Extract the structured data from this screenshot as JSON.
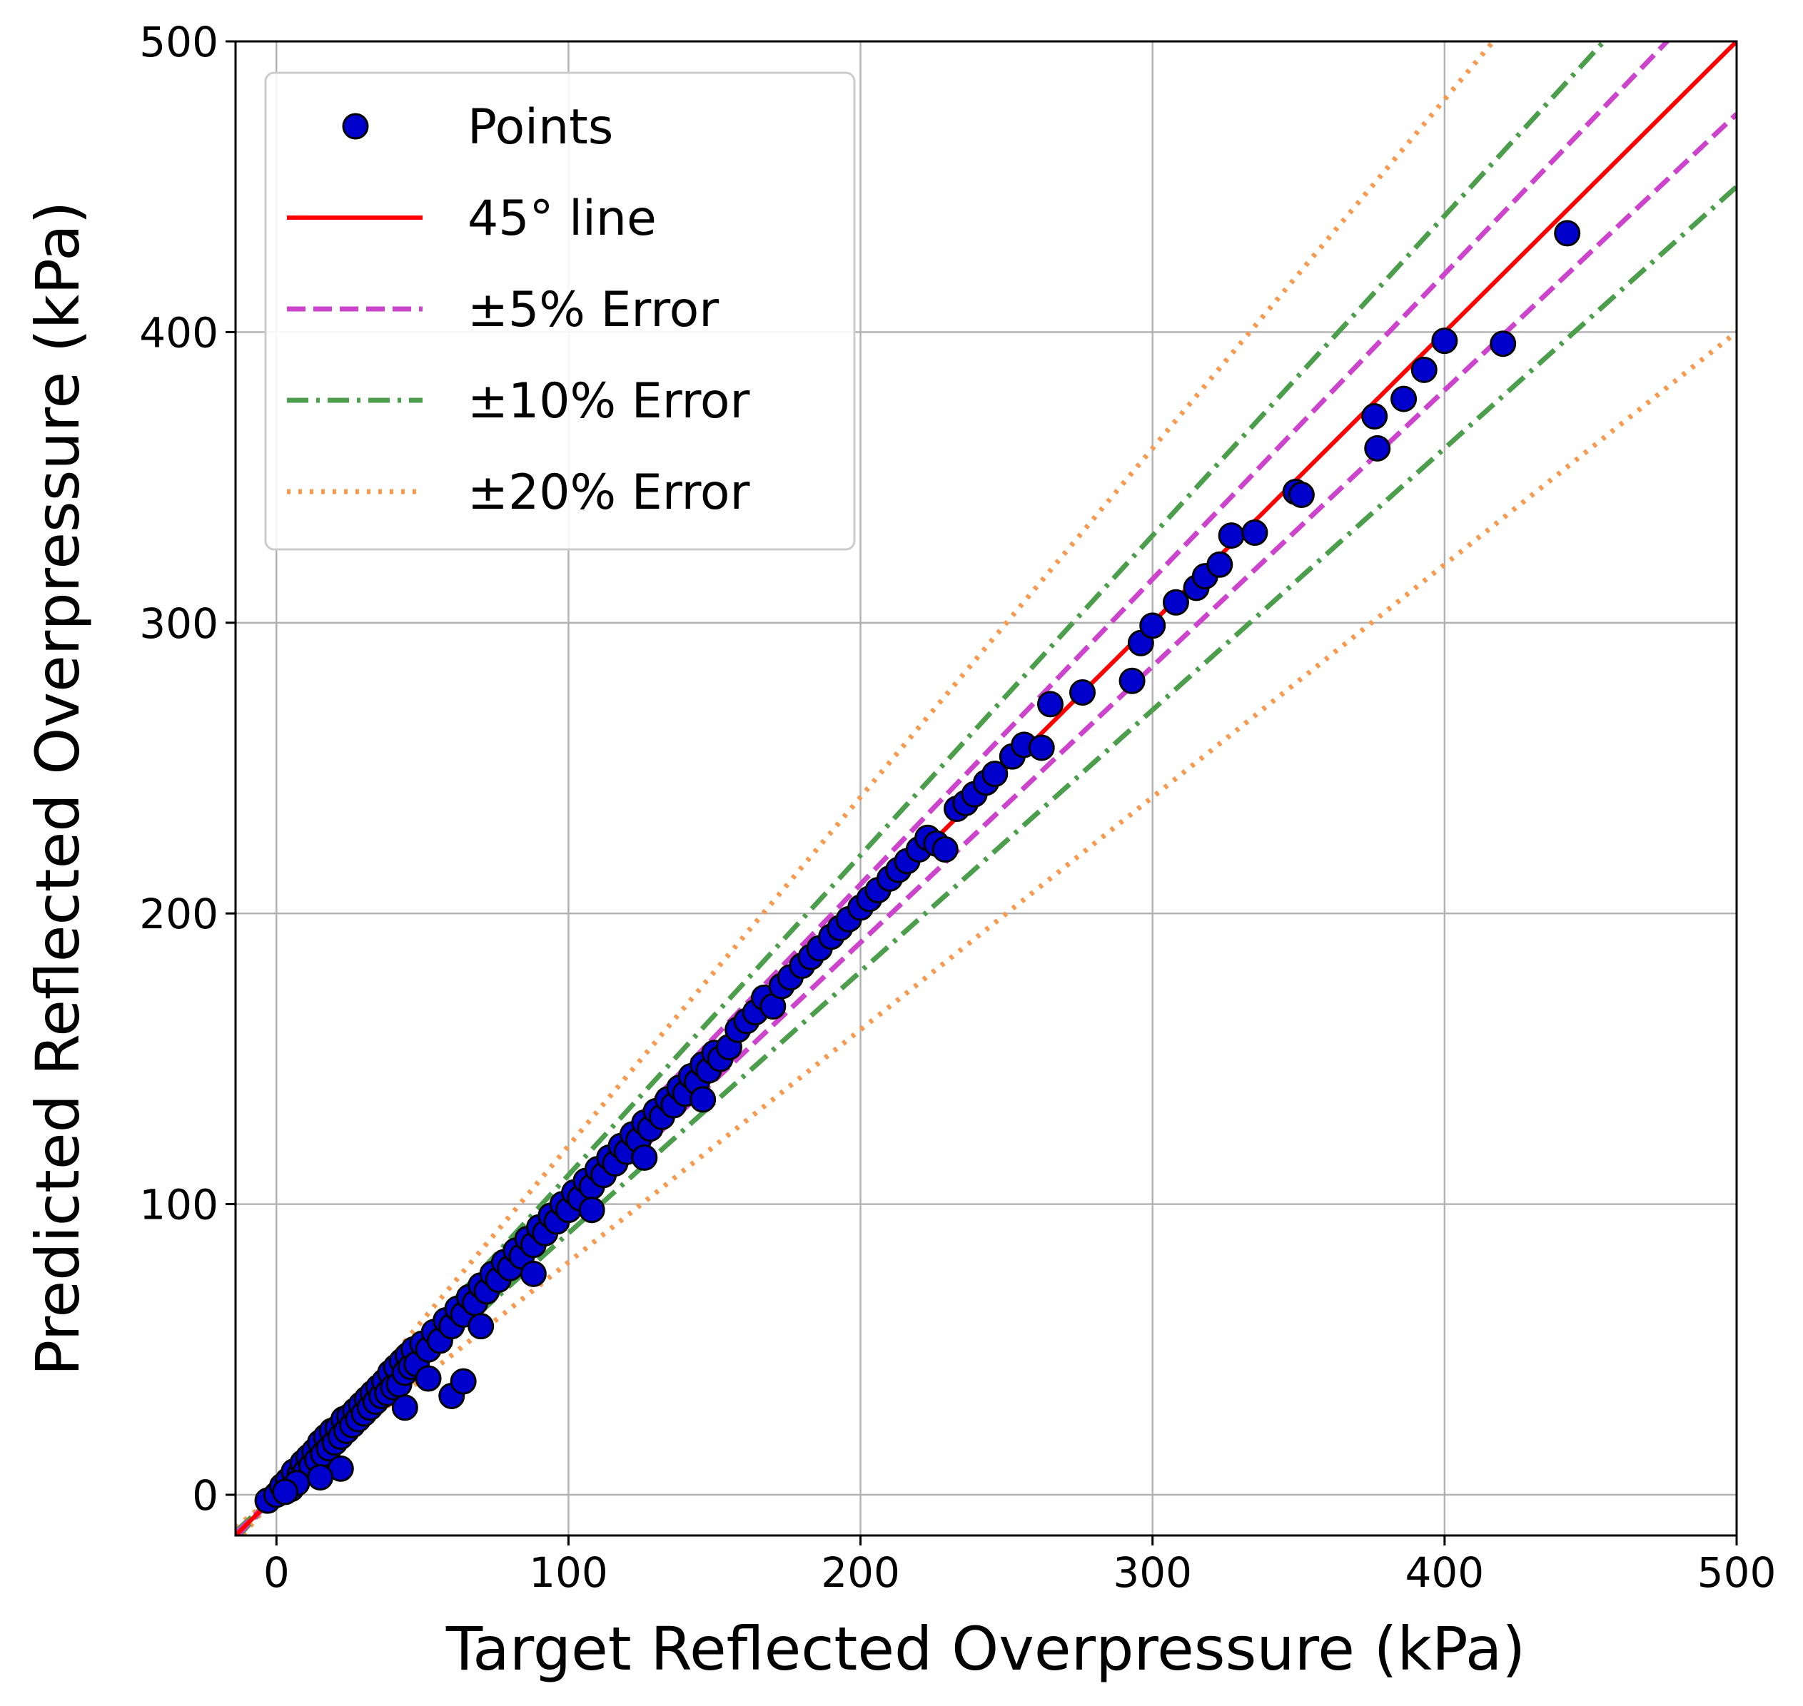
{
  "chart_data": {
    "type": "scatter",
    "xlabel": "Target Reflected Overpressure (kPa)",
    "ylabel": "Predicted Reflected Overpressure (kPa)",
    "xlim": [
      -14,
      500
    ],
    "ylim": [
      -14,
      500
    ],
    "xticks": [
      "0",
      "100",
      "200",
      "300",
      "400",
      "500"
    ],
    "yticks": [
      "0",
      "100",
      "200",
      "300",
      "400",
      "500"
    ],
    "grid": true,
    "legend_position": "top-left",
    "series": [
      {
        "name": "Points",
        "kind": "scatter",
        "color": "#0000cc",
        "edge_color": "#000000",
        "points": [
          [
            -3,
            -2
          ],
          [
            0,
            0
          ],
          [
            2,
            3
          ],
          [
            4,
            5
          ],
          [
            5,
            2
          ],
          [
            6,
            8
          ],
          [
            8,
            7
          ],
          [
            9,
            11
          ],
          [
            10,
            8
          ],
          [
            11,
            13
          ],
          [
            12,
            10
          ],
          [
            13,
            15
          ],
          [
            14,
            12
          ],
          [
            15,
            18
          ],
          [
            16,
            14
          ],
          [
            17,
            20
          ],
          [
            18,
            16
          ],
          [
            19,
            22
          ],
          [
            20,
            18
          ],
          [
            21,
            23
          ],
          [
            22,
            20
          ],
          [
            23,
            26
          ],
          [
            24,
            22
          ],
          [
            25,
            27
          ],
          [
            26,
            24
          ],
          [
            27,
            29
          ],
          [
            28,
            26
          ],
          [
            29,
            31
          ],
          [
            30,
            28
          ],
          [
            31,
            33
          ],
          [
            32,
            30
          ],
          [
            33,
            35
          ],
          [
            34,
            32
          ],
          [
            35,
            37
          ],
          [
            36,
            34
          ],
          [
            37,
            39
          ],
          [
            38,
            35
          ],
          [
            39,
            42
          ],
          [
            40,
            37
          ],
          [
            41,
            44
          ],
          [
            42,
            38
          ],
          [
            43,
            46
          ],
          [
            44,
            42
          ],
          [
            45,
            48
          ],
          [
            46,
            44
          ],
          [
            47,
            50
          ],
          [
            48,
            45
          ],
          [
            50,
            52
          ],
          [
            52,
            50
          ],
          [
            54,
            56
          ],
          [
            56,
            53
          ],
          [
            58,
            60
          ],
          [
            60,
            58
          ],
          [
            62,
            64
          ],
          [
            64,
            62
          ],
          [
            66,
            68
          ],
          [
            68,
            66
          ],
          [
            70,
            72
          ],
          [
            72,
            70
          ],
          [
            74,
            76
          ],
          [
            76,
            74
          ],
          [
            78,
            80
          ],
          [
            80,
            78
          ],
          [
            82,
            84
          ],
          [
            84,
            82
          ],
          [
            86,
            88
          ],
          [
            88,
            86
          ],
          [
            90,
            92
          ],
          [
            92,
            90
          ],
          [
            94,
            96
          ],
          [
            96,
            94
          ],
          [
            98,
            100
          ],
          [
            100,
            98
          ],
          [
            102,
            104
          ],
          [
            104,
            102
          ],
          [
            106,
            108
          ],
          [
            108,
            106
          ],
          [
            110,
            112
          ],
          [
            112,
            110
          ],
          [
            114,
            116
          ],
          [
            116,
            114
          ],
          [
            118,
            120
          ],
          [
            120,
            118
          ],
          [
            122,
            124
          ],
          [
            124,
            122
          ],
          [
            126,
            128
          ],
          [
            128,
            126
          ],
          [
            130,
            132
          ],
          [
            132,
            130
          ],
          [
            134,
            136
          ],
          [
            136,
            134
          ],
          [
            138,
            140
          ],
          [
            140,
            138
          ],
          [
            142,
            144
          ],
          [
            144,
            142
          ],
          [
            146,
            148
          ],
          [
            148,
            146
          ],
          [
            150,
            152
          ],
          [
            152,
            150
          ],
          [
            155,
            154
          ],
          [
            158,
            160
          ],
          [
            161,
            163
          ],
          [
            164,
            166
          ],
          [
            167,
            171
          ],
          [
            170,
            168
          ],
          [
            173,
            175
          ],
          [
            176,
            178
          ],
          [
            180,
            182
          ],
          [
            183,
            185
          ],
          [
            186,
            188
          ],
          [
            190,
            192
          ],
          [
            193,
            195
          ],
          [
            196,
            198
          ],
          [
            200,
            202
          ],
          [
            203,
            205
          ],
          [
            206,
            208
          ],
          [
            210,
            212
          ],
          [
            213,
            215
          ],
          [
            216,
            218
          ],
          [
            220,
            222
          ],
          [
            223,
            226
          ],
          [
            226,
            224
          ],
          [
            229,
            222
          ],
          [
            233,
            236
          ],
          [
            236,
            238
          ],
          [
            239,
            241
          ],
          [
            243,
            245
          ],
          [
            246,
            248
          ],
          [
            252,
            254
          ],
          [
            256,
            258
          ],
          [
            262,
            257
          ],
          [
            265,
            272
          ],
          [
            276,
            276
          ],
          [
            293,
            280
          ],
          [
            296,
            293
          ],
          [
            300,
            299
          ],
          [
            308,
            307
          ],
          [
            315,
            312
          ],
          [
            318,
            316
          ],
          [
            323,
            320
          ],
          [
            327,
            330
          ],
          [
            335,
            331
          ],
          [
            349,
            345
          ],
          [
            351,
            344
          ],
          [
            376,
            371
          ],
          [
            377,
            360
          ],
          [
            386,
            377
          ],
          [
            393,
            387
          ],
          [
            400,
            397
          ],
          [
            420,
            396
          ],
          [
            442,
            434
          ],
          [
            60,
            34
          ],
          [
            64,
            39
          ],
          [
            22,
            9
          ],
          [
            15,
            6
          ],
          [
            7,
            4
          ],
          [
            3,
            1
          ],
          [
            44,
            30
          ],
          [
            52,
            40
          ],
          [
            70,
            58
          ],
          [
            88,
            76
          ],
          [
            108,
            98
          ],
          [
            126,
            116
          ],
          [
            146,
            136
          ]
        ]
      },
      {
        "name": "45° line",
        "kind": "line",
        "slope": 1.0,
        "color": "#ff0000",
        "dash": "solid"
      },
      {
        "name": "±5% Error",
        "kind": "band",
        "slopes": [
          1.05,
          0.95
        ],
        "color": "#cc44cc",
        "dash": "dashed"
      },
      {
        "name": "±10% Error",
        "kind": "band",
        "slopes": [
          1.1,
          0.9
        ],
        "color": "#4c9e4c",
        "dash": "dashdot"
      },
      {
        "name": "±20% Error",
        "kind": "band",
        "slopes": [
          1.2,
          0.8
        ],
        "color": "#f79a50",
        "dash": "dotted"
      }
    ]
  }
}
